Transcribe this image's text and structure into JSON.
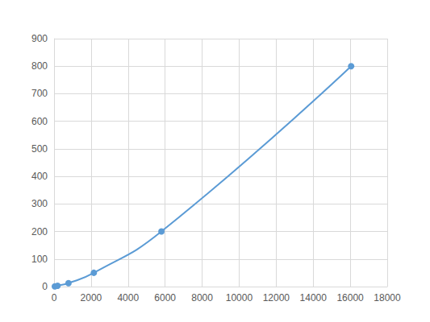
{
  "chart_data": {
    "type": "line",
    "x": [
      40,
      190,
      780,
      2150,
      5800,
      16050
    ],
    "values": [
      0.78,
      3.125,
      12.5,
      50,
      200,
      800
    ],
    "color": "#5b9bd5",
    "marker": "circle",
    "line_style": "smooth",
    "xlim": [
      0,
      18000
    ],
    "xticks": [
      0,
      2000,
      4000,
      6000,
      8000,
      10000,
      12000,
      14000,
      16000,
      18000
    ],
    "ylim": [
      0,
      900
    ],
    "yticks": [
      0,
      100,
      200,
      300,
      400,
      500,
      600,
      700,
      800,
      900
    ],
    "grid": true
  }
}
